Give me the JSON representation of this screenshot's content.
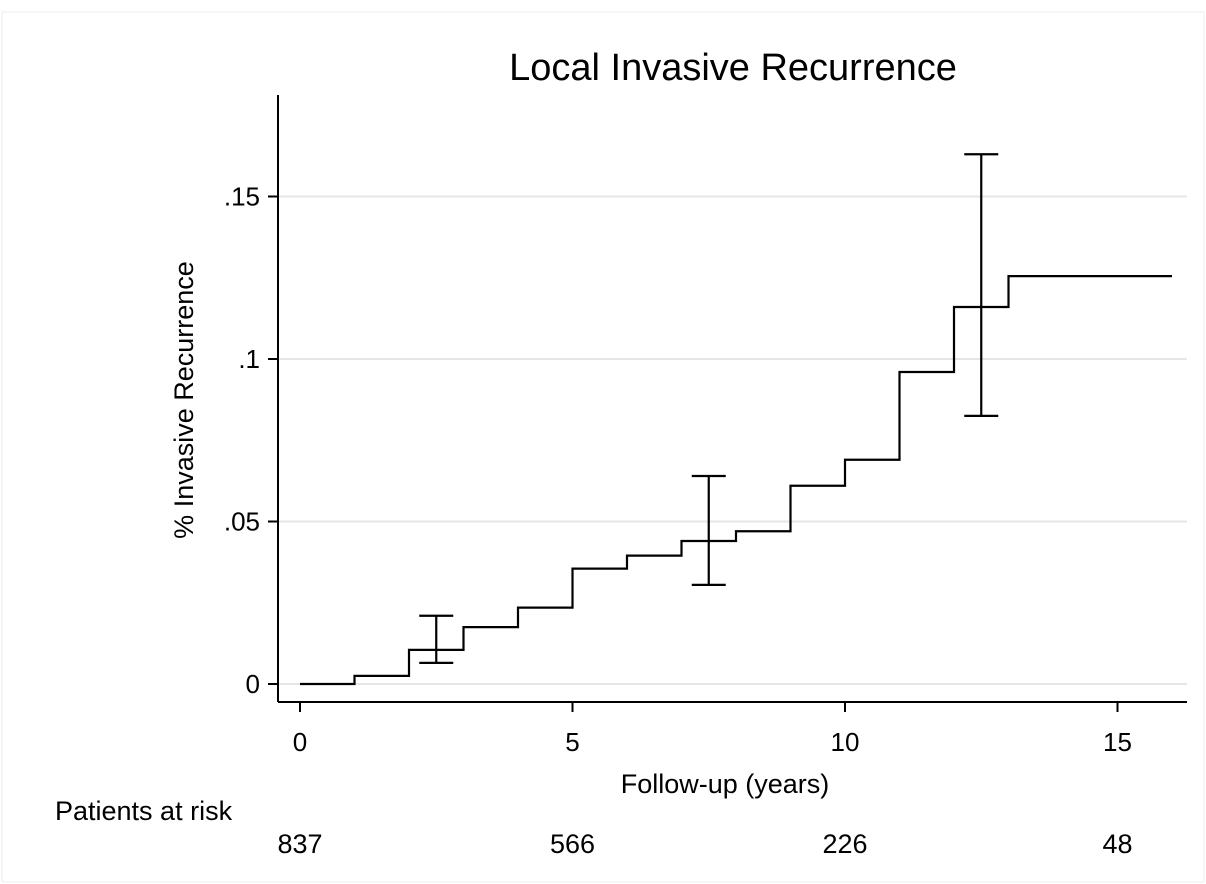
{
  "chart_data": {
    "type": "line",
    "subtype": "kaplan-meier-cumulative-incidence",
    "title": "Local Invasive Recurrence",
    "xlabel": "Follow-up (years)",
    "ylabel": "% Invasive Recurrence",
    "xlim": [
      -0.1,
      16.3
    ],
    "ylim": [
      -0.006,
      0.18
    ],
    "x_ticks": [
      {
        "value": 0,
        "label": "0"
      },
      {
        "value": 5,
        "label": "5"
      },
      {
        "value": 10,
        "label": "10"
      },
      {
        "value": 15,
        "label": "15"
      }
    ],
    "y_ticks": [
      {
        "value": 0,
        "label": "0"
      },
      {
        "value": 0.05,
        "label": ".05"
      },
      {
        "value": 0.1,
        "label": ".1"
      },
      {
        "value": 0.15,
        "label": ".15"
      }
    ],
    "grid": true,
    "series": [
      {
        "step": [
          {
            "x": 0,
            "y": 0
          },
          {
            "x": 1,
            "y": 0.0025
          },
          {
            "x": 2,
            "y": 0.0105
          },
          {
            "x": 3,
            "y": 0.0175
          },
          {
            "x": 4,
            "y": 0.0235
          },
          {
            "x": 5,
            "y": 0.0355
          },
          {
            "x": 6,
            "y": 0.0395
          },
          {
            "x": 7,
            "y": 0.044
          },
          {
            "x": 8,
            "y": 0.047
          },
          {
            "x": 9,
            "y": 0.061
          },
          {
            "x": 10,
            "y": 0.069
          },
          {
            "x": 11,
            "y": 0.096
          },
          {
            "x": 12,
            "y": 0.116
          },
          {
            "x": 13,
            "y": 0.1255
          },
          {
            "x": 16,
            "y": 0.1255
          }
        ]
      }
    ],
    "error_bars": [
      {
        "x": 2.5,
        "lower": 0.0065,
        "upper": 0.021
      },
      {
        "x": 7.5,
        "lower": 0.0305,
        "upper": 0.064
      },
      {
        "x": 12.5,
        "lower": 0.0825,
        "upper": 0.163
      }
    ],
    "at_risk": {
      "label": "Patients at risk",
      "values": [
        {
          "x": 0,
          "count": "837"
        },
        {
          "x": 5,
          "count": "566"
        },
        {
          "x": 10,
          "count": "226"
        },
        {
          "x": 15,
          "count": "48"
        }
      ]
    }
  }
}
